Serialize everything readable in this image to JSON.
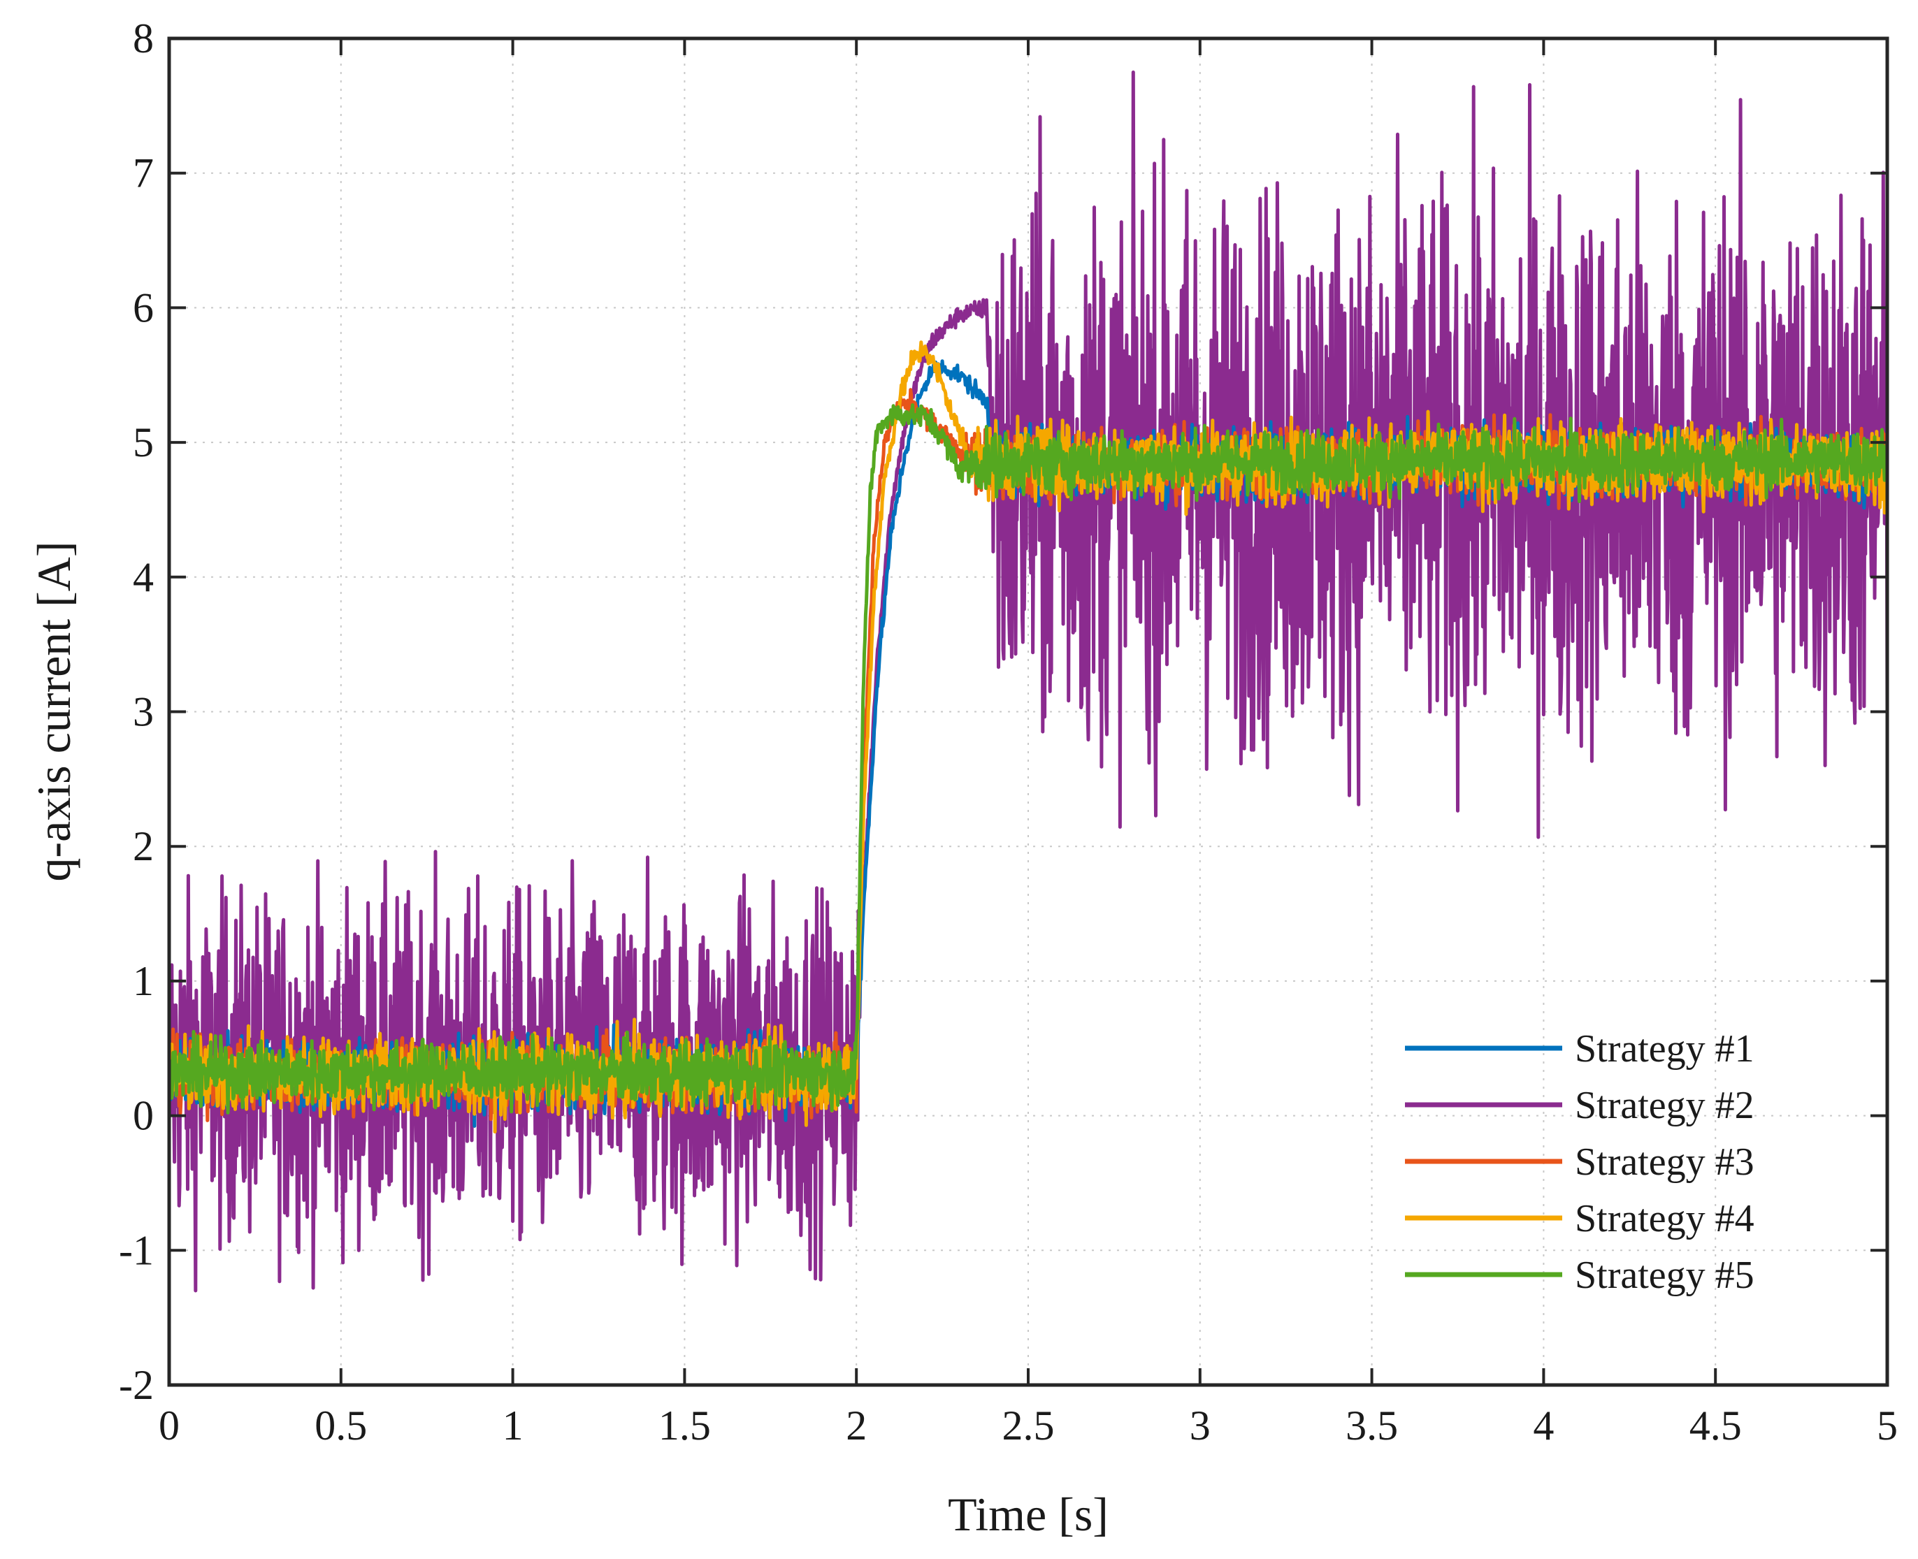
{
  "chart_data": {
    "type": "line",
    "title": "",
    "xlabel": "Time [s]",
    "ylabel": "q-axis current [A]",
    "xlim": [
      0,
      5
    ],
    "ylim": [
      -2,
      8
    ],
    "xticks": [
      0,
      0.5,
      1,
      1.5,
      2,
      2.5,
      3,
      3.5,
      4,
      4.5,
      5
    ],
    "xtick_labels": [
      "0",
      "0.5",
      "1",
      "1.5",
      "2",
      "2.5",
      "3",
      "3.5",
      "4",
      "4.5",
      "5"
    ],
    "yticks": [
      -2,
      -1,
      0,
      1,
      2,
      3,
      4,
      5,
      6,
      7,
      8
    ],
    "ytick_labels": [
      "-2",
      "-1",
      "0",
      "1",
      "2",
      "3",
      "4",
      "5",
      "6",
      "7",
      "8"
    ],
    "grid": true,
    "legend_position": "bottom-right",
    "series": [
      {
        "name": "Strategy #1",
        "color": "#0072BD",
        "baseline": [
          [
            0,
            0.3
          ],
          [
            2.0,
            0.3
          ],
          [
            2.02,
            1.5
          ],
          [
            2.06,
            3.2
          ],
          [
            2.1,
            4.3
          ],
          [
            2.14,
            4.9
          ],
          [
            2.18,
            5.3
          ],
          [
            2.22,
            5.55
          ],
          [
            2.26,
            5.55
          ],
          [
            2.3,
            5.5
          ],
          [
            2.34,
            5.4
          ],
          [
            2.38,
            5.3
          ],
          [
            2.4,
            4.85
          ],
          [
            5,
            4.85
          ]
        ],
        "noise": [
          [
            0,
            0.18
          ],
          [
            2.0,
            0.18
          ],
          [
            2.02,
            0.05
          ],
          [
            2.38,
            0.05
          ],
          [
            2.4,
            0.18
          ],
          [
            5,
            0.18
          ]
        ]
      },
      {
        "name": "Strategy #2",
        "color": "#8B2B8F",
        "baseline": [
          [
            0,
            0.35
          ],
          [
            2.0,
            0.35
          ],
          [
            2.02,
            1.6
          ],
          [
            2.06,
            3.4
          ],
          [
            2.1,
            4.5
          ],
          [
            2.14,
            5.1
          ],
          [
            2.18,
            5.5
          ],
          [
            2.22,
            5.75
          ],
          [
            2.26,
            5.85
          ],
          [
            2.3,
            5.95
          ],
          [
            2.38,
            6.0
          ],
          [
            2.4,
            4.8
          ],
          [
            5,
            4.8
          ]
        ],
        "noise": [
          [
            0,
            0.9
          ],
          [
            2.0,
            0.9
          ],
          [
            2.02,
            0.05
          ],
          [
            2.38,
            0.05
          ],
          [
            2.4,
            1.45
          ],
          [
            5,
            1.45
          ]
        ]
      },
      {
        "name": "Strategy #3",
        "color": "#E8541A",
        "baseline": [
          [
            0,
            0.3
          ],
          [
            2.0,
            0.3
          ],
          [
            2.02,
            2.5
          ],
          [
            2.05,
            4.2
          ],
          [
            2.08,
            5.0
          ],
          [
            2.12,
            5.25
          ],
          [
            2.16,
            5.3
          ],
          [
            2.2,
            5.2
          ],
          [
            2.24,
            5.1
          ],
          [
            2.28,
            5.0
          ],
          [
            2.32,
            4.9
          ],
          [
            2.36,
            4.85
          ],
          [
            5,
            4.85
          ]
        ],
        "noise": [
          [
            0,
            0.18
          ],
          [
            2.0,
            0.18
          ],
          [
            2.02,
            0.06
          ],
          [
            2.3,
            0.06
          ],
          [
            2.36,
            0.18
          ],
          [
            5,
            0.18
          ]
        ]
      },
      {
        "name": "Strategy #4",
        "color": "#F5A700",
        "baseline": [
          [
            0,
            0.3
          ],
          [
            2.0,
            0.3
          ],
          [
            2.02,
            2.2
          ],
          [
            2.05,
            3.8
          ],
          [
            2.08,
            4.7
          ],
          [
            2.12,
            5.25
          ],
          [
            2.16,
            5.6
          ],
          [
            2.2,
            5.7
          ],
          [
            2.24,
            5.5
          ],
          [
            2.28,
            5.2
          ],
          [
            2.32,
            4.95
          ],
          [
            2.36,
            4.85
          ],
          [
            5,
            4.85
          ]
        ],
        "noise": [
          [
            0,
            0.2
          ],
          [
            2.0,
            0.2
          ],
          [
            2.02,
            0.06
          ],
          [
            2.3,
            0.06
          ],
          [
            2.36,
            0.2
          ],
          [
            5,
            0.2
          ]
        ]
      },
      {
        "name": "Strategy #5",
        "color": "#55A820",
        "baseline": [
          [
            0,
            0.32
          ],
          [
            2.0,
            0.32
          ],
          [
            2.02,
            3.2
          ],
          [
            2.04,
            4.6
          ],
          [
            2.06,
            5.1
          ],
          [
            2.1,
            5.2
          ],
          [
            2.15,
            5.2
          ],
          [
            2.2,
            5.2
          ],
          [
            2.25,
            5.05
          ],
          [
            2.3,
            4.8
          ],
          [
            2.35,
            4.85
          ],
          [
            5,
            4.87
          ]
        ],
        "noise": [
          [
            0,
            0.16
          ],
          [
            2.0,
            0.16
          ],
          [
            2.02,
            0.06
          ],
          [
            2.3,
            0.06
          ],
          [
            2.35,
            0.16
          ],
          [
            5,
            0.16
          ]
        ]
      }
    ]
  }
}
